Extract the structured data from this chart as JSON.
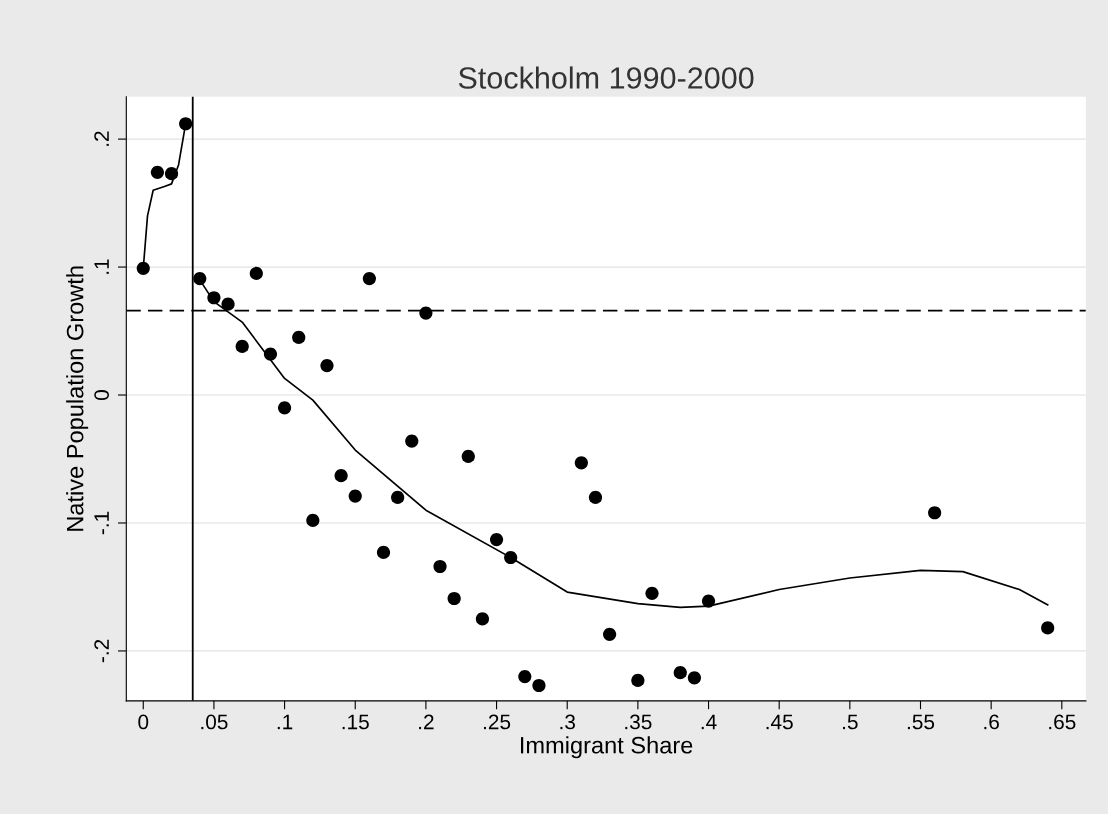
{
  "chart_data": {
    "type": "scatter",
    "title": "Stockholm 1990-2000",
    "xlabel": "Immigrant Share",
    "ylabel": "Native Population Growth",
    "xlim": [
      -0.012,
      0.667
    ],
    "ylim": [
      -0.239,
      0.233
    ],
    "xticks": [
      0,
      {
        "value": 0.05,
        "label": ".05"
      },
      {
        "value": 0.1,
        "label": ".1"
      },
      {
        "value": 0.15,
        "label": ".15"
      },
      {
        "value": 0.2,
        "label": ".2"
      },
      {
        "value": 0.25,
        "label": ".25"
      },
      {
        "value": 0.3,
        "label": ".3"
      },
      {
        "value": 0.35,
        "label": ".35"
      },
      {
        "value": 0.4,
        "label": ".4"
      },
      {
        "value": 0.45,
        "label": ".45"
      },
      {
        "value": 0.5,
        "label": ".5"
      },
      {
        "value": 0.55,
        "label": ".55"
      },
      {
        "value": 0.6,
        "label": ".6"
      },
      {
        "value": 0.65,
        "label": ".65"
      }
    ],
    "yticks": [
      {
        "value": -0.2,
        "label": "-.2"
      },
      {
        "value": -0.1,
        "label": "-.1"
      },
      0,
      {
        "value": 0.1,
        "label": ".1"
      },
      {
        "value": 0.2,
        "label": ".2"
      }
    ],
    "grid": "y",
    "legend": false,
    "ref_lines": [
      {
        "axis": "x",
        "value": 0.035,
        "color": "#000000",
        "line_style": "solid"
      },
      {
        "axis": "y",
        "value": 0.066,
        "color": "#000000",
        "line_style": "dashed"
      }
    ],
    "series": [
      {
        "marker": "circle",
        "color": "#000000",
        "x": [
          0,
          0.01,
          0.02,
          0.03,
          0.04,
          0.05,
          0.06,
          0.07,
          0.08,
          0.09,
          0.1,
          0.11,
          0.12,
          0.13,
          0.14,
          0.15,
          0.16,
          0.17,
          0.18,
          0.19,
          0.2,
          0.21,
          0.22,
          0.23,
          0.24,
          0.25,
          0.26,
          0.27,
          0.28,
          0.31,
          0.32,
          0.33,
          0.35,
          0.36,
          0.38,
          0.39,
          0.4,
          0.56,
          0.64
        ],
        "values": [
          0.099,
          0.174,
          0.173,
          0.212,
          0.091,
          0.076,
          0.071,
          0.038,
          0.095,
          0.032,
          -0.01,
          0.045,
          -0.098,
          0.023,
          -0.063,
          -0.079,
          0.091,
          -0.123,
          -0.08,
          -0.036,
          0.064,
          -0.134,
          -0.159,
          -0.048,
          -0.175,
          -0.113,
          -0.127,
          -0.22,
          -0.227,
          -0.053,
          -0.08,
          -0.187,
          -0.223,
          -0.155,
          -0.217,
          -0.221,
          -0.161,
          -0.092,
          -0.182
        ]
      },
      {
        "type": "line",
        "marker": "none",
        "color": "#000000",
        "x": [
          0,
          0.003,
          0.007,
          0.015,
          0.02,
          0.025,
          0.03
        ],
        "values": [
          0.099,
          0.14,
          0.16,
          0.163,
          0.165,
          0.18,
          0.212
        ]
      },
      {
        "type": "line",
        "marker": "none",
        "color": "#000000",
        "x": [
          0.04,
          0.05,
          0.07,
          0.1,
          0.12,
          0.15,
          0.2,
          0.26,
          0.3,
          0.35,
          0.38,
          0.4,
          0.45,
          0.5,
          0.55,
          0.58,
          0.62,
          0.64
        ],
        "values": [
          0.09,
          0.073,
          0.057,
          0.013,
          -0.004,
          -0.043,
          -0.09,
          -0.127,
          -0.154,
          -0.163,
          -0.166,
          -0.165,
          -0.152,
          -0.143,
          -0.137,
          -0.138,
          -0.152,
          -0.164
        ]
      }
    ]
  }
}
